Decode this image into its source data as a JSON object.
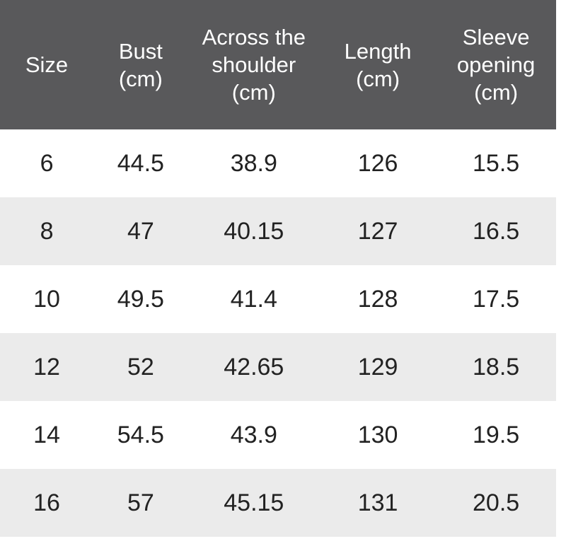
{
  "colors": {
    "header-bg": "#59595b",
    "header-text": "#ffffff",
    "row-bg": "#ffffff",
    "row-alt-bg": "#ebebeb",
    "body-text": "#222222"
  },
  "table": {
    "header": [
      "Size",
      "Bust\n(cm)",
      "Across the\nshoulder\n(cm)",
      "Length\n(cm)",
      "Sleeve\nopening\n(cm)"
    ],
    "rows": [
      [
        "6",
        "44.5",
        "38.9",
        "126",
        "15.5"
      ],
      [
        "8",
        "47",
        "40.15",
        "127",
        "16.5"
      ],
      [
        "10",
        "49.5",
        "41.4",
        "128",
        "17.5"
      ],
      [
        "12",
        "52",
        "42.65",
        "129",
        "18.5"
      ],
      [
        "14",
        "54.5",
        "43.9",
        "130",
        "19.5"
      ],
      [
        "16",
        "57",
        "45.15",
        "131",
        "20.5"
      ]
    ]
  },
  "chart_data": {
    "type": "table",
    "title": "",
    "columns": [
      "Size",
      "Bust (cm)",
      "Across the shoulder (cm)",
      "Length (cm)",
      "Sleeve opening (cm)"
    ],
    "rows": [
      [
        6,
        44.5,
        38.9,
        126,
        15.5
      ],
      [
        8,
        47,
        40.15,
        127,
        16.5
      ],
      [
        10,
        49.5,
        41.4,
        128,
        17.5
      ],
      [
        12,
        52,
        42.65,
        129,
        18.5
      ],
      [
        14,
        54.5,
        43.9,
        130,
        19.5
      ],
      [
        16,
        57,
        45.15,
        131,
        20.5
      ]
    ],
    "layout": {
      "header_background": "#59595b",
      "alternating_row_background": "#ebebeb",
      "grid": "none",
      "alignment": "center"
    }
  }
}
